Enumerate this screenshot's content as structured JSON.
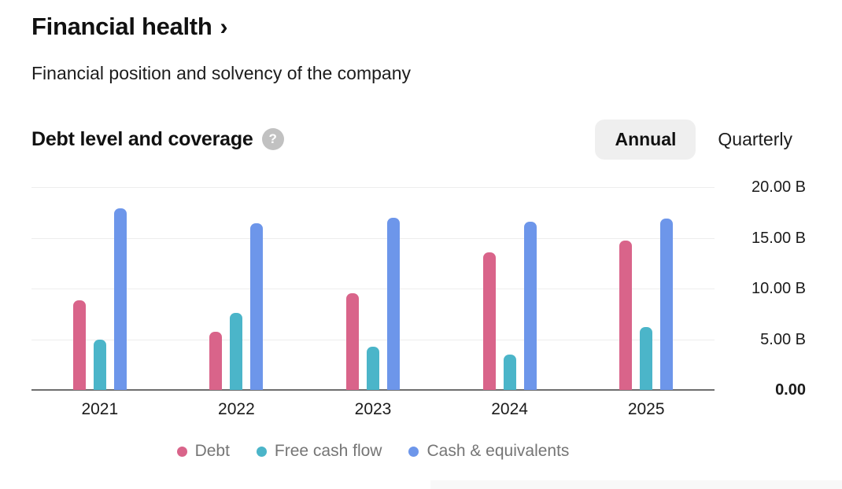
{
  "header": {
    "title": "Financial health",
    "chevron": "›",
    "subtitle": "Financial position and solvency of the company"
  },
  "section": {
    "title": "Debt level and coverage",
    "help_icon": "?",
    "toggle": {
      "annual": "Annual",
      "quarterly": "Quarterly",
      "selected": "Annual"
    }
  },
  "chart_data": {
    "type": "bar",
    "categories": [
      "2021",
      "2022",
      "2023",
      "2024",
      "2025"
    ],
    "series": [
      {
        "name": "Debt",
        "color": "#d9648a",
        "values": [
          8.8,
          5.7,
          9.5,
          13.6,
          14.7
        ]
      },
      {
        "name": "Free cash flow",
        "color": "#4bb5c9",
        "values": [
          5.0,
          7.6,
          4.3,
          3.5,
          6.2
        ]
      },
      {
        "name": "Cash & equivalents",
        "color": "#6d96ea",
        "values": [
          17.9,
          16.4,
          17.0,
          16.6,
          16.9
        ]
      }
    ],
    "unit": "B",
    "ylim": [
      0,
      20
    ],
    "yticks": [
      {
        "value": 20,
        "label": "20.00 B"
      },
      {
        "value": 15,
        "label": "15.00 B"
      },
      {
        "value": 10,
        "label": "10.00 B"
      },
      {
        "value": 5,
        "label": "5.00 B"
      },
      {
        "value": 0,
        "label": "0.00"
      }
    ],
    "grid": true,
    "legend_position": "bottom",
    "value_axis_side": "right"
  },
  "colors": {
    "debt": "#d9648a",
    "free_cash_flow": "#4bb5c9",
    "cash_equivalents": "#6d96ea",
    "axis_baseline": "#6e6e6e",
    "gridline": "#ededed",
    "legend_text": "#757575",
    "toggle_pill_bg": "#efefef",
    "help_icon_bg": "#c1c1c1"
  }
}
